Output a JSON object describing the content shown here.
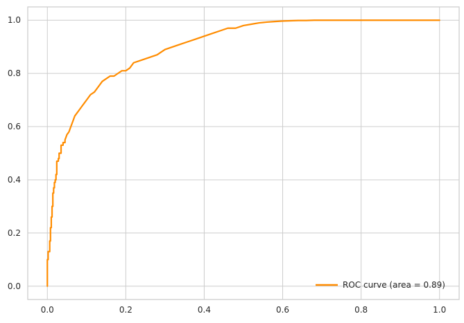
{
  "chart_data": {
    "type": "line",
    "title": "",
    "xlabel": "",
    "ylabel": "",
    "xlim": [
      -0.05,
      1.05
    ],
    "ylim": [
      -0.05,
      1.05
    ],
    "x_ticks": [
      0.0,
      0.2,
      0.4,
      0.6,
      0.8,
      1.0
    ],
    "x_tick_labels": [
      "0.0",
      "0.2",
      "0.4",
      "0.6",
      "0.8",
      "1.0"
    ],
    "y_ticks": [
      0.0,
      0.2,
      0.4,
      0.6,
      0.8,
      1.0
    ],
    "y_tick_labels": [
      "0.0",
      "0.2",
      "0.4",
      "0.6",
      "0.8",
      "1.0"
    ],
    "grid": true,
    "legend_position": "lower-right",
    "series": [
      {
        "name": "ROC curve (area = 0.89)",
        "color": "#ff8c00",
        "x": [
          0.0,
          0.0,
          0.002,
          0.002,
          0.006,
          0.006,
          0.008,
          0.008,
          0.01,
          0.01,
          0.012,
          0.012,
          0.014,
          0.014,
          0.016,
          0.016,
          0.018,
          0.018,
          0.02,
          0.02,
          0.022,
          0.022,
          0.024,
          0.024,
          0.028,
          0.028,
          0.03,
          0.03,
          0.035,
          0.035,
          0.04,
          0.04,
          0.045,
          0.045,
          0.05,
          0.055,
          0.06,
          0.065,
          0.07,
          0.075,
          0.08,
          0.085,
          0.09,
          0.095,
          0.1,
          0.105,
          0.11,
          0.12,
          0.13,
          0.14,
          0.15,
          0.16,
          0.17,
          0.18,
          0.19,
          0.2,
          0.21,
          0.22,
          0.24,
          0.26,
          0.28,
          0.3,
          0.32,
          0.34,
          0.36,
          0.38,
          0.4,
          0.42,
          0.44,
          0.46,
          0.48,
          0.5,
          0.52,
          0.54,
          0.56,
          0.58,
          0.6,
          0.62,
          0.64,
          0.66,
          0.68,
          0.7,
          0.8,
          0.9,
          1.0
        ],
        "y": [
          0.0,
          0.1,
          0.1,
          0.13,
          0.13,
          0.17,
          0.17,
          0.22,
          0.22,
          0.26,
          0.26,
          0.3,
          0.3,
          0.35,
          0.35,
          0.37,
          0.37,
          0.39,
          0.39,
          0.4,
          0.4,
          0.42,
          0.42,
          0.47,
          0.47,
          0.48,
          0.48,
          0.5,
          0.5,
          0.53,
          0.53,
          0.54,
          0.54,
          0.55,
          0.57,
          0.58,
          0.6,
          0.62,
          0.64,
          0.65,
          0.66,
          0.67,
          0.68,
          0.69,
          0.7,
          0.71,
          0.72,
          0.73,
          0.75,
          0.77,
          0.78,
          0.79,
          0.79,
          0.8,
          0.81,
          0.81,
          0.82,
          0.84,
          0.85,
          0.86,
          0.87,
          0.89,
          0.9,
          0.91,
          0.92,
          0.93,
          0.94,
          0.95,
          0.96,
          0.97,
          0.97,
          0.98,
          0.985,
          0.99,
          0.993,
          0.995,
          0.997,
          0.998,
          0.999,
          0.999,
          1.0,
          1.0,
          1.0,
          1.0,
          1.0
        ]
      }
    ]
  }
}
